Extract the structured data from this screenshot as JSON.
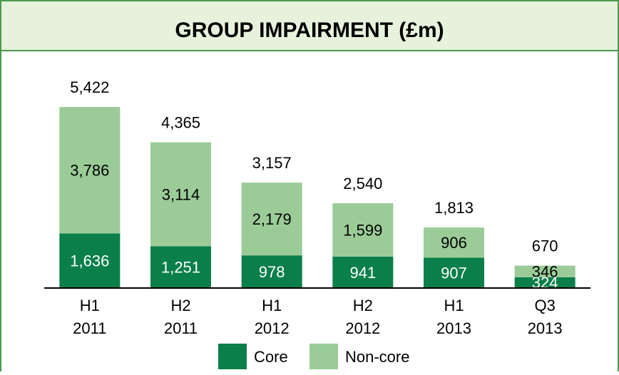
{
  "chart_data": {
    "type": "stacked_bar",
    "title": "GROUP IMPAIRMENT (£m)",
    "categories": [
      "H1 2011",
      "H2 2011",
      "H1 2012",
      "H2 2012",
      "H1 2013",
      "Q3 2013"
    ],
    "series": [
      {
        "name": "Core",
        "color": "#0b7f4a",
        "values": [
          1636,
          1251,
          978,
          941,
          907,
          324
        ],
        "value_labels": [
          "1,636",
          "1,251",
          "978",
          "941",
          "907",
          "324"
        ]
      },
      {
        "name": "Non-core",
        "color": "#9bcc98",
        "values": [
          3786,
          3114,
          2179,
          1599,
          906,
          346
        ],
        "value_labels": [
          "3,786",
          "3,114",
          "2,179",
          "1,599",
          "906",
          "346"
        ]
      }
    ],
    "totals": [
      5422,
      4365,
      3157,
      2540,
      1813,
      670
    ],
    "total_labels": [
      "5,422",
      "4,365",
      "3,157",
      "2,540",
      "1,813",
      "670"
    ],
    "ylim": [
      0,
      6000
    ]
  }
}
